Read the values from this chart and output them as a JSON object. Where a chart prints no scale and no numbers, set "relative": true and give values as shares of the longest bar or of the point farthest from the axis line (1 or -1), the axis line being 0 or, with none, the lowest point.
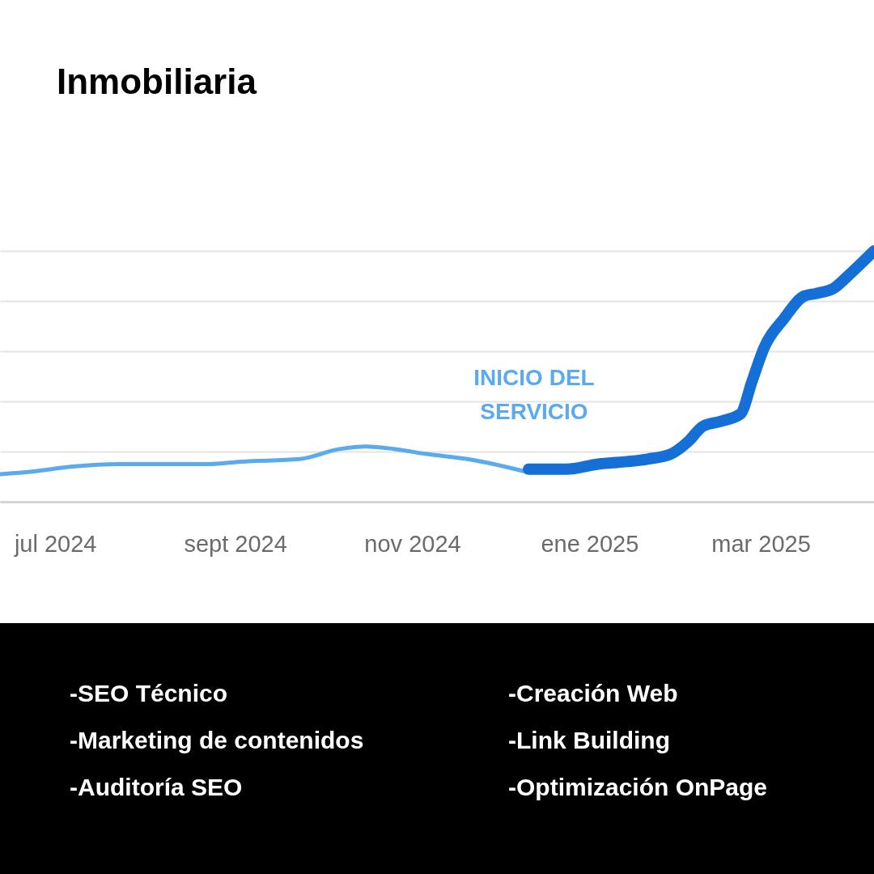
{
  "chart_data": {
    "type": "line",
    "title": "Inmobiliaria",
    "relative": true,
    "grid": "y",
    "xlim": [
      "2024-06-12",
      "2025-04-09"
    ],
    "xticks": [
      {
        "value": "2024-07-01",
        "label": "jul 2024"
      },
      {
        "value": "2024-09-01",
        "label": "sept 2024"
      },
      {
        "value": "2024-11-01",
        "label": "nov 2024"
      },
      {
        "value": "2025-01-01",
        "label": "ene 2025"
      },
      {
        "value": "2025-03-01",
        "label": "mar 2025"
      }
    ],
    "series": [
      {
        "color": "#5aaaee",
        "x": [
          "2024-06-12",
          "2024-06-23",
          "2024-07-07",
          "2024-07-23",
          "2024-08-23",
          "2024-09-03",
          "2024-09-23",
          "2024-10-07",
          "2024-10-16",
          "2024-10-26",
          "2024-11-06",
          "2024-11-20",
          "2024-11-29",
          "2024-12-10"
        ],
        "values": [
          0.11,
          0.12,
          0.14,
          0.15,
          0.15,
          0.16,
          0.17,
          0.21,
          0.22,
          0.21,
          0.19,
          0.17,
          0.15,
          0.12
        ]
      },
      {
        "color": "#1470d6",
        "x": [
          "2024-12-11",
          "2024-12-24",
          "2025-01-04",
          "2025-01-14",
          "2025-01-21",
          "2025-01-29",
          "2025-02-04",
          "2025-02-09",
          "2025-02-15",
          "2025-02-22",
          "2025-02-26",
          "2025-03-02",
          "2025-03-09",
          "2025-03-16",
          "2025-03-20",
          "2025-03-26",
          "2025-03-31",
          "2025-04-09"
        ],
        "values": [
          0.13,
          0.13,
          0.15,
          0.16,
          0.17,
          0.19,
          0.24,
          0.3,
          0.32,
          0.35,
          0.48,
          0.61,
          0.73,
          0.82,
          0.83,
          0.85,
          0.9,
          1
        ]
      }
    ],
    "annotations": [
      "INICIO DEL SERVICIO",
      "-SEO Técnico",
      "-Creación Web",
      "-Marketing de contenidos",
      "-Link Building",
      "-Auditoría SEO",
      "-Optimización OnPage"
    ]
  }
}
